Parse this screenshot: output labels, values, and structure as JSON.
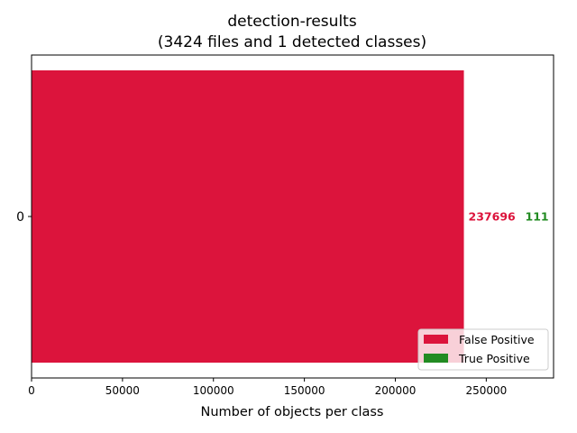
{
  "chart_data": {
    "type": "bar",
    "orientation": "horizontal",
    "title_line1": "detection-results",
    "title_line2": "(3424 files and 1 detected classes)",
    "xlabel": "Number of objects per class",
    "ylabel": "",
    "categories": [
      "0"
    ],
    "series": [
      {
        "name": "False Positive",
        "color": "#dc143c",
        "values": [
          237696
        ]
      },
      {
        "name": "True Positive",
        "color": "#228b22",
        "values": [
          111
        ]
      }
    ],
    "xlim": [
      0,
      287000
    ],
    "xticks": [
      0,
      50000,
      100000,
      150000,
      200000,
      250000
    ],
    "grid": false,
    "legend_position": "lower right"
  }
}
